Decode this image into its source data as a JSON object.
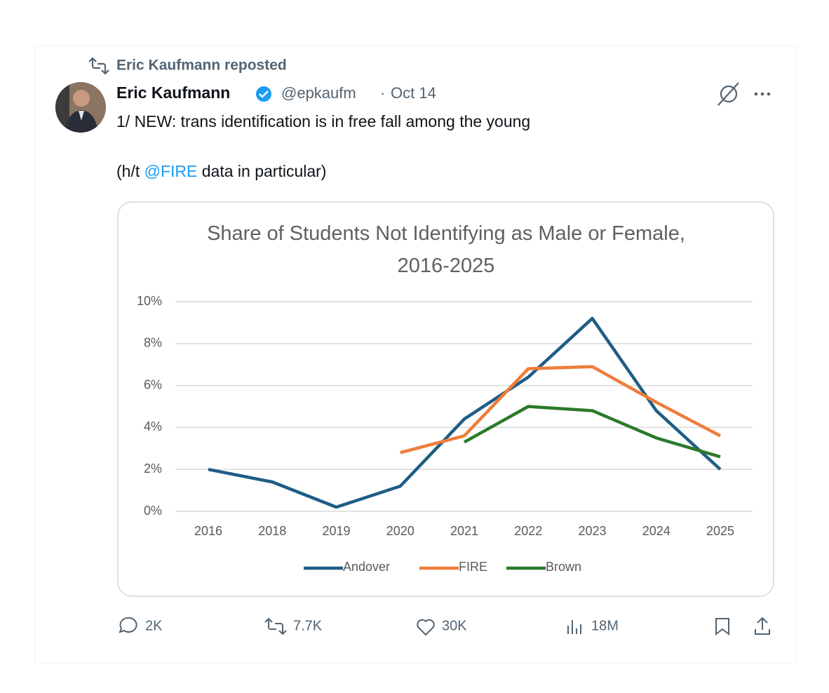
{
  "repost": "Eric Kaufmann reposted",
  "author": {
    "name": "Eric Kaufmann",
    "handle": "@epkaufm",
    "separator": "·",
    "date": "Oct 14"
  },
  "text": {
    "line1": "1/ NEW: trans identification is in free fall among the young",
    "line2": {
      "before": "(h/t ",
      "mention": "@FIRE",
      "after": " data in particular)"
    }
  },
  "stats": {
    "replies": "2K",
    "reposts": "7.7K",
    "likes": "30K",
    "views": "18M"
  },
  "chart_data": {
    "type": "line",
    "title": "Share of Students Not Identifying as Male or Female, 2016-2025",
    "categories": [
      "2016",
      "2018",
      "2019",
      "2020",
      "2021",
      "2022",
      "2023",
      "2024",
      "2025"
    ],
    "series": [
      {
        "name": "Andover",
        "color": "#1f5d84",
        "values": [
          2.0,
          1.4,
          0.2,
          1.2,
          4.4,
          6.4,
          9.2,
          4.8,
          2.0
        ]
      },
      {
        "name": "FIRE",
        "color": "#ee7d3a",
        "values": [
          null,
          null,
          null,
          2.8,
          3.6,
          6.8,
          6.9,
          5.2,
          3.6
        ]
      },
      {
        "name": "Brown",
        "color": "#2b7a2b",
        "values": [
          null,
          null,
          null,
          null,
          3.3,
          5.0,
          4.8,
          3.5,
          2.6
        ]
      }
    ],
    "ylim": [
      0,
      10
    ],
    "yticks": [
      {
        "value": 0,
        "label": "0%"
      },
      {
        "value": 2,
        "label": "2%"
      },
      {
        "value": 4,
        "label": "4%"
      },
      {
        "value": 6,
        "label": "6%"
      },
      {
        "value": 8,
        "label": "8%"
      },
      {
        "value": 10,
        "label": "10%"
      }
    ],
    "grid": true,
    "legend": "bottom"
  }
}
